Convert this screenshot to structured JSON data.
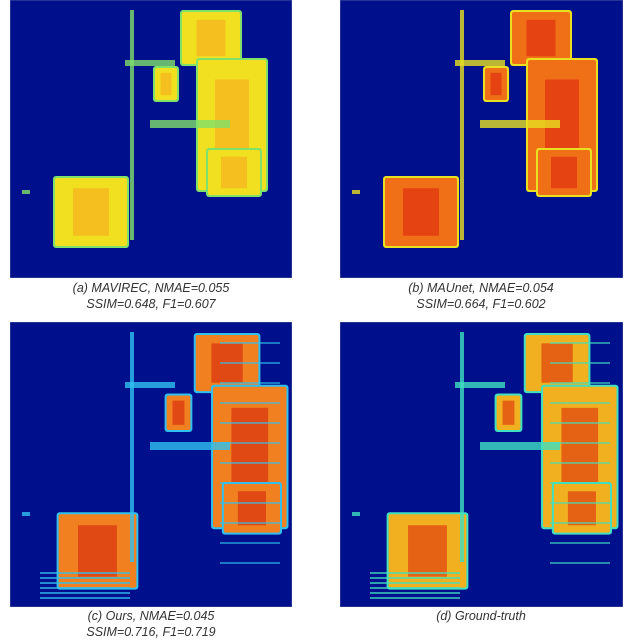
{
  "panels": [
    {
      "caption_line1": "(a) MAVIREC, NMAE=0.055",
      "caption_line2": "SSIM=0.648, F1=0.607"
    },
    {
      "caption_line1": "(b) MAUnet, NMAE=0.054",
      "caption_line2": "SSIM=0.664, F1=0.602"
    },
    {
      "caption_line1": "(c) Ours, NMAE=0.045",
      "caption_line2": "SSIM=0.716, F1=0.719"
    },
    {
      "caption_line1": "(d) Ground-truth"
    }
  ]
}
